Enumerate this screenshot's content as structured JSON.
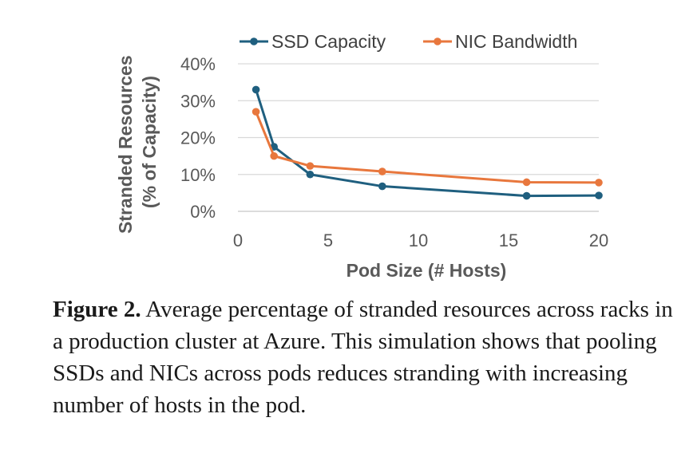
{
  "chart_data": {
    "type": "line",
    "xlabel": "Pod Size (# Hosts)",
    "ylabel_line1": "Stranded Resources",
    "ylabel_line2": "(% of Capacity)",
    "xlim": [
      0,
      20
    ],
    "ylim": [
      0,
      40
    ],
    "x_ticks": [
      0,
      5,
      10,
      15,
      20
    ],
    "y_ticks": [
      0,
      10,
      20,
      30,
      40
    ],
    "y_tick_labels": [
      "0%",
      "10%",
      "20%",
      "30%",
      "40%"
    ],
    "grid": "horizontal",
    "legend_position": "top",
    "series": [
      {
        "name": "SSD Capacity",
        "color": "#1f5f7f",
        "x": [
          1,
          2,
          4,
          8,
          16,
          20
        ],
        "values": [
          33.0,
          17.5,
          10.0,
          6.8,
          4.2,
          4.3
        ]
      },
      {
        "name": "NIC Bandwidth",
        "color": "#e8773d",
        "x": [
          1,
          2,
          4,
          8,
          16,
          20
        ],
        "values": [
          27.0,
          15.0,
          12.3,
          10.8,
          7.9,
          7.8
        ]
      }
    ]
  },
  "caption": {
    "label": "Figure 2.",
    "text": " Average percentage of stranded resources across racks in a production cluster at Azure. This simulation shows that pooling SSDs and NICs across pods reduces stranding with increasing number of hosts in the pod."
  }
}
